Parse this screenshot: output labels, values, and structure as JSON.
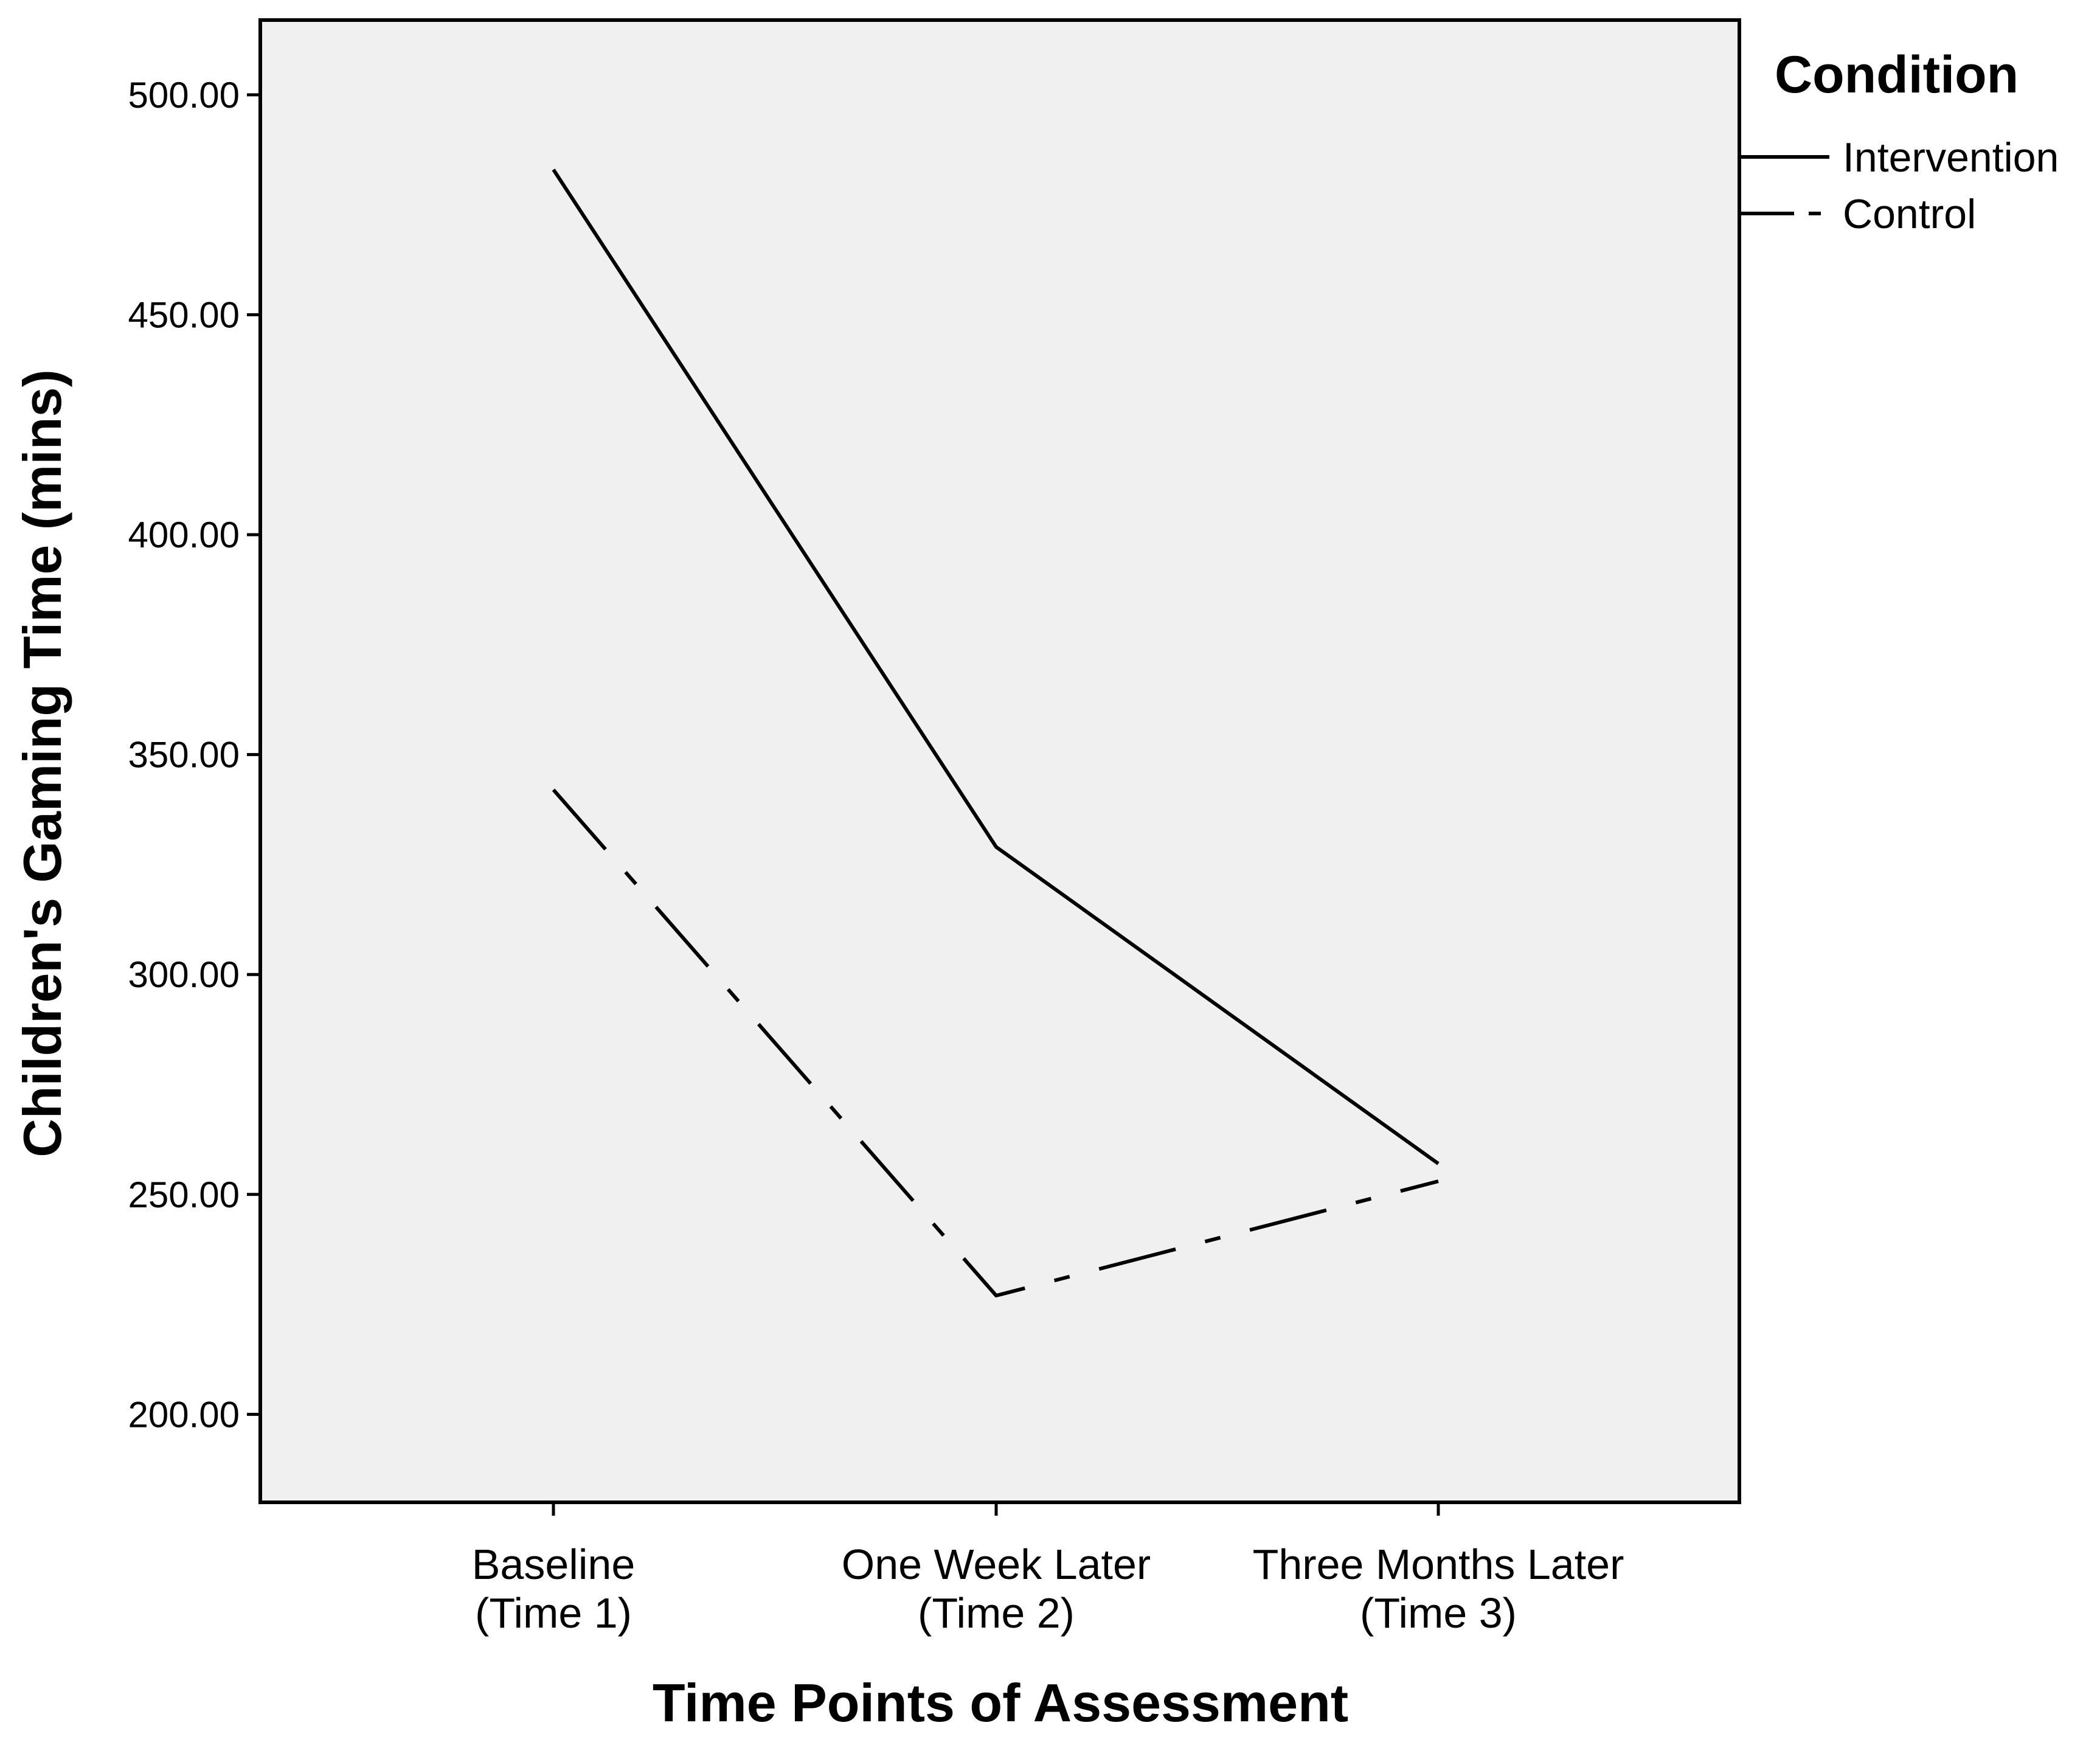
{
  "chart_data": {
    "type": "line",
    "xlabel": "Time Points of Assessment",
    "ylabel": "Children's Gaming Time (mins)",
    "categories": [
      [
        "Baseline",
        "(Time 1)"
      ],
      [
        "One Week Later",
        "(Time 2)"
      ],
      [
        "Three Months Later",
        "(Time 3)"
      ]
    ],
    "ylim": [
      180,
      517
    ],
    "yticks": [
      200,
      250,
      300,
      350,
      400,
      450,
      500
    ],
    "ytick_labels": [
      "200.00",
      "250.00",
      "300.00",
      "350.00",
      "400.00",
      "450.00",
      "500.00"
    ],
    "series": [
      {
        "name": "Intervention",
        "style": "solid",
        "values": [
          483,
          329,
          257
        ]
      },
      {
        "name": "Control",
        "style": "dashed",
        "values": [
          342,
          227,
          253
        ]
      }
    ],
    "legend": {
      "title": "Condition",
      "position": "top-right outside plot"
    },
    "grid": false,
    "colors": {
      "plot_background": "#f0f0f0",
      "line": "#000000"
    }
  }
}
